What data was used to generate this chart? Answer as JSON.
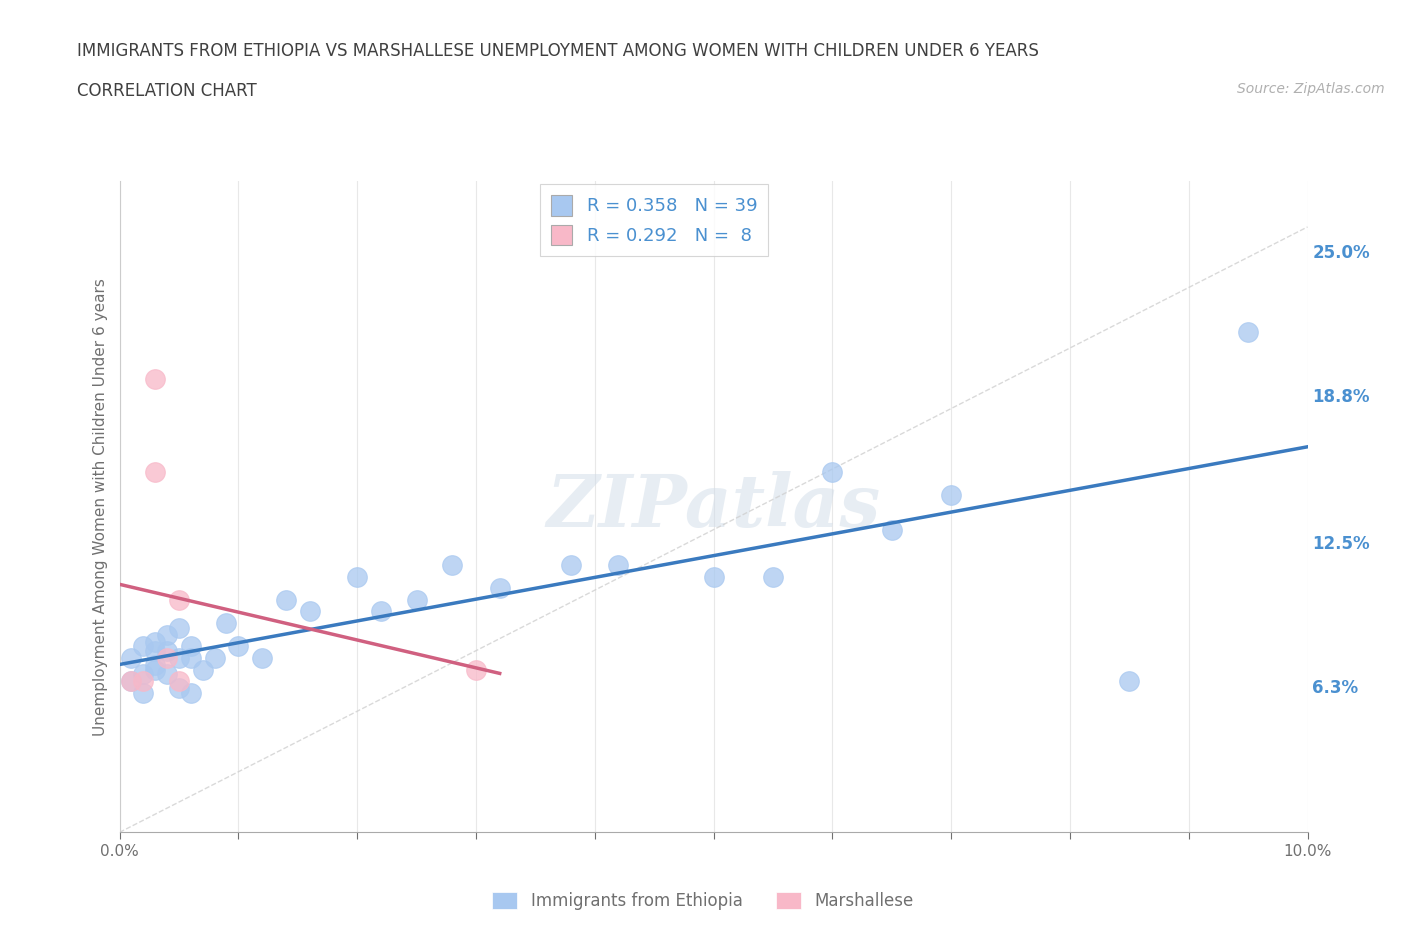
{
  "title_line1": "IMMIGRANTS FROM ETHIOPIA VS MARSHALLESE UNEMPLOYMENT AMONG WOMEN WITH CHILDREN UNDER 6 YEARS",
  "title_line2": "CORRELATION CHART",
  "source_text": "Source: ZipAtlas.com",
  "ylabel": "Unemployment Among Women with Children Under 6 years",
  "watermark": "ZIPatlas",
  "legend_r1": "R = 0.358",
  "legend_n1": "N = 39",
  "legend_r2": "R = 0.292",
  "legend_n2": "N =  8",
  "series1_name": "Immigrants from Ethiopia",
  "series2_name": "Marshallese",
  "series1_color": "#a8c8f0",
  "series2_color": "#f8b8c8",
  "trendline1_color": "#3a7abf",
  "trendline2_color": "#d06080",
  "diag_color": "#d0d0d0",
  "right_yticks": [
    0.063,
    0.125,
    0.188,
    0.25
  ],
  "right_yticklabels": [
    "6.3%",
    "12.5%",
    "18.8%",
    "25.0%"
  ],
  "xlim": [
    0.0,
    0.1
  ],
  "ylim": [
    0.0,
    0.28
  ],
  "series1_x": [
    0.001,
    0.001,
    0.002,
    0.002,
    0.002,
    0.003,
    0.003,
    0.003,
    0.003,
    0.004,
    0.004,
    0.004,
    0.005,
    0.005,
    0.005,
    0.006,
    0.006,
    0.006,
    0.007,
    0.008,
    0.009,
    0.01,
    0.012,
    0.014,
    0.016,
    0.02,
    0.022,
    0.025,
    0.028,
    0.032,
    0.038,
    0.042,
    0.05,
    0.055,
    0.06,
    0.065,
    0.07,
    0.085,
    0.095
  ],
  "series1_y": [
    0.065,
    0.075,
    0.06,
    0.068,
    0.08,
    0.07,
    0.078,
    0.082,
    0.072,
    0.078,
    0.068,
    0.085,
    0.062,
    0.075,
    0.088,
    0.08,
    0.075,
    0.06,
    0.07,
    0.075,
    0.09,
    0.08,
    0.075,
    0.1,
    0.095,
    0.11,
    0.095,
    0.1,
    0.115,
    0.105,
    0.115,
    0.115,
    0.11,
    0.11,
    0.155,
    0.13,
    0.145,
    0.065,
    0.215
  ],
  "series2_x": [
    0.001,
    0.002,
    0.003,
    0.003,
    0.004,
    0.005,
    0.005,
    0.03
  ],
  "series2_y": [
    0.065,
    0.065,
    0.155,
    0.195,
    0.075,
    0.065,
    0.1,
    0.07
  ],
  "background_color": "#ffffff",
  "grid_color": "#e8e8e8",
  "title_color": "#404040",
  "axis_color": "#707070",
  "right_label_color": "#4a90d0",
  "legend_text_color": "#4a90d0"
}
